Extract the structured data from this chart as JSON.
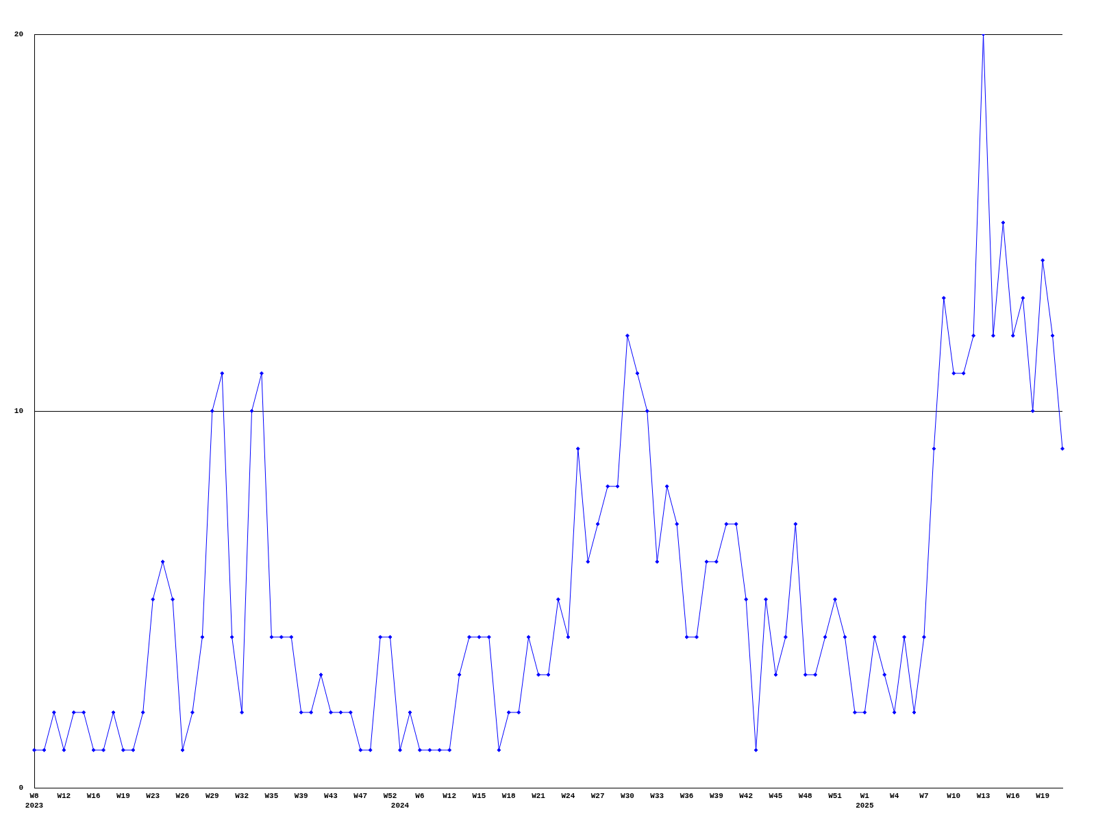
{
  "chart_data": {
    "type": "line",
    "categories": [
      "W8\n2023",
      null,
      null,
      "W12",
      null,
      null,
      "W16",
      null,
      null,
      "W19",
      null,
      null,
      "W23",
      null,
      null,
      "W26",
      null,
      null,
      "W29",
      null,
      null,
      "W32",
      null,
      null,
      "W35",
      null,
      null,
      "W39",
      null,
      null,
      "W43",
      null,
      null,
      "W47",
      null,
      null,
      "W52",
      "\n2024",
      null,
      "W6",
      null,
      null,
      "W12",
      null,
      null,
      "W15",
      null,
      null,
      "W18",
      null,
      null,
      "W21",
      null,
      null,
      "W24",
      null,
      null,
      "W27",
      null,
      null,
      "W30",
      null,
      null,
      "W33",
      null,
      null,
      "W36",
      null,
      null,
      "W39",
      null,
      null,
      "W42",
      null,
      null,
      "W45",
      null,
      null,
      "W48",
      null,
      null,
      "W51",
      null,
      null,
      "W1\n2025",
      null,
      null,
      "W4",
      null,
      null,
      "W7",
      null,
      null,
      "W10",
      null,
      null,
      "W13",
      null,
      null,
      "W16",
      null,
      null,
      "W19",
      null,
      null
    ],
    "series": [
      {
        "color": "#0000ff",
        "values": [
          1,
          1,
          2,
          1,
          2,
          2,
          1,
          1,
          2,
          1,
          1,
          2,
          5,
          6,
          5,
          1,
          2,
          4,
          10,
          11,
          4,
          2,
          10,
          11,
          4,
          4,
          4,
          2,
          2,
          3,
          2,
          2,
          2,
          1,
          1,
          4,
          4,
          1,
          2,
          1,
          1,
          1,
          1,
          3,
          4,
          4,
          4,
          1,
          2,
          2,
          4,
          3,
          3,
          5,
          4,
          9,
          6,
          7,
          8,
          8,
          12,
          11,
          10,
          6,
          8,
          7,
          4,
          4,
          6,
          6,
          7,
          7,
          5,
          1,
          5,
          3,
          4,
          7,
          3,
          3,
          4,
          5,
          4,
          2,
          2,
          4,
          3,
          2,
          4,
          2,
          4,
          9,
          13,
          11,
          11,
          12,
          20,
          12,
          15,
          12,
          13,
          10,
          14,
          12,
          9
        ]
      }
    ],
    "ylim": [
      0,
      20
    ],
    "yticks": [
      0,
      10,
      20
    ],
    "grid": "y",
    "legend": false,
    "marker": "diamond",
    "line_style": "solid"
  }
}
